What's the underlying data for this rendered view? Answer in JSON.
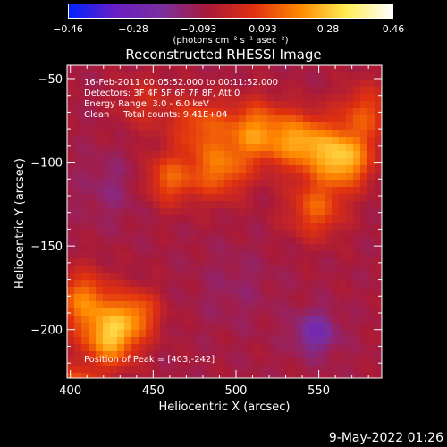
{
  "chart_data": {
    "type": "heatmap",
    "title": "Reconstructed RHESSI Image",
    "xlabel": "Heliocentric X (arcsec)",
    "ylabel": "Heliocentric Y (arcsec)",
    "xlim": [
      398,
      588
    ],
    "ylim": [
      -229,
      -42
    ],
    "x_ticks": [
      400,
      450,
      500,
      550
    ],
    "y_ticks": [
      -50,
      -100,
      -150,
      -200
    ],
    "x_tick_labels": [
      "400",
      "450",
      "500",
      "550"
    ],
    "y_tick_labels": [
      "−50",
      "−100",
      "−150",
      "−200"
    ],
    "colorbar": {
      "min": -0.46,
      "max": 0.46,
      "tick_labels": [
        "−0.46",
        "−0.28",
        "−0.093",
        "0.093",
        "0.28",
        "0.46"
      ],
      "colors": [
        "#0022ff",
        "#6a1fc4",
        "#7a2fa0",
        "#a81a3a",
        "#e03010",
        "#ff8800",
        "#ffee55",
        "#ffffff"
      ]
    },
    "units_label": "(photons cm⁻² s⁻¹ asec⁻²)",
    "sources": [
      {
        "x": 403,
        "y": -242,
        "amp": 0.46,
        "sigma": 10
      },
      {
        "x": 424,
        "y": -205,
        "amp": 0.33,
        "sigma": 12
      },
      {
        "x": 408,
        "y": -182,
        "amp": 0.24,
        "sigma": 12
      },
      {
        "x": 440,
        "y": -190,
        "amp": 0.2,
        "sigma": 10
      },
      {
        "x": 565,
        "y": -98,
        "amp": 0.34,
        "sigma": 12
      },
      {
        "x": 540,
        "y": -88,
        "amp": 0.28,
        "sigma": 12
      },
      {
        "x": 512,
        "y": -82,
        "amp": 0.27,
        "sigma": 13
      },
      {
        "x": 490,
        "y": -105,
        "amp": 0.22,
        "sigma": 12
      },
      {
        "x": 460,
        "y": -110,
        "amp": 0.2,
        "sigma": 11
      },
      {
        "x": 478,
        "y": -78,
        "amp": 0.18,
        "sigma": 12
      },
      {
        "x": 548,
        "y": -128,
        "amp": 0.2,
        "sigma": 12
      },
      {
        "x": 578,
        "y": -70,
        "amp": 0.17,
        "sigma": 12
      },
      {
        "x": 445,
        "y": -65,
        "amp": 0.1,
        "sigma": 12
      },
      {
        "x": 548,
        "y": -202,
        "amp": -0.16,
        "sigma": 9
      },
      {
        "x": 425,
        "y": -115,
        "amp": -0.06,
        "sigma": 14
      },
      {
        "x": 500,
        "y": -175,
        "amp": -0.04,
        "sigma": 16
      }
    ],
    "baseline": -0.075,
    "annotations": [
      "16-Feb-2011 00:05:52.000 to 00:11:52.000",
      "Detectors: 3F 4F 5F 6F 7F 8F, Att 0",
      "Energy Range: 3.0 - 6.0 keV",
      "Clean     Total counts: 9.41E+04"
    ],
    "peak_label": "Position of Peak = [403,-242]"
  },
  "footer": {
    "date": "9-May-2022 01:26"
  }
}
